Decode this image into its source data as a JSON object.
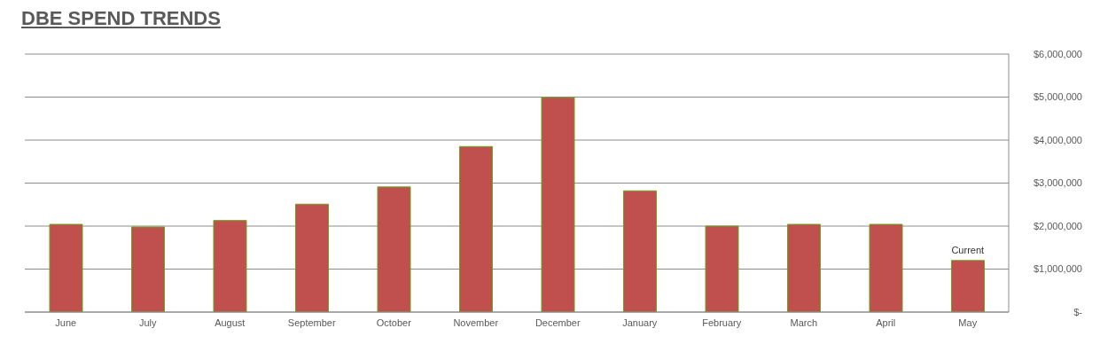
{
  "chart_data": {
    "type": "bar",
    "title": "DBE SPEND TRENDS",
    "categories": [
      "June",
      "July",
      "August",
      "September",
      "October",
      "November",
      "December",
      "January",
      "February",
      "March",
      "April",
      "May"
    ],
    "values": [
      2040000,
      1980000,
      2130000,
      2510000,
      2910000,
      3850000,
      4990000,
      2820000,
      2000000,
      2040000,
      2040000,
      1200000
    ],
    "color": "#c0504d",
    "ylim": [
      0,
      6000000
    ],
    "yticks": [
      {
        "value": 0,
        "label": "$-"
      },
      {
        "value": 1000000,
        "label": "$1,000,000"
      },
      {
        "value": 2000000,
        "label": "$2,000,000"
      },
      {
        "value": 3000000,
        "label": "$3,000,000"
      },
      {
        "value": 4000000,
        "label": "$4,000,000"
      },
      {
        "value": 5000000,
        "label": "$5,000,000"
      },
      {
        "value": 6000000,
        "label": "$6,000,000"
      }
    ],
    "grid": "y",
    "annotations": [
      {
        "text": "Current",
        "x": "May",
        "y": 1200000
      }
    ]
  }
}
